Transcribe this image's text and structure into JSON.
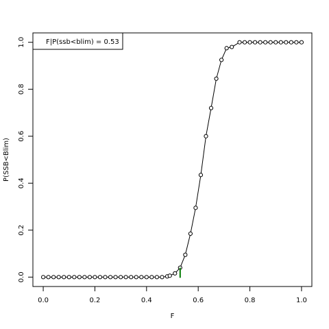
{
  "chart_data": {
    "type": "line",
    "xlabel": "F",
    "ylabel": "P(SSB<Blim)",
    "xlim": [
      -0.04,
      1.04
    ],
    "ylim": [
      -0.04,
      1.04
    ],
    "x_ticks": [
      "0.0",
      "0.2",
      "0.4",
      "0.6",
      "0.8",
      "1.0"
    ],
    "y_ticks": [
      "0.0",
      "0.2",
      "0.4",
      "0.6",
      "0.8",
      "1.0"
    ],
    "legend_text": "F|P(ssb<blim) =  0.53",
    "legend_position": "top-left",
    "marker": "open-circle",
    "line_color": "#000000",
    "highlight_color": "#007a00",
    "highlight": {
      "x": 0.53,
      "y_from": 0.0,
      "y_to": 0.04
    },
    "series": [
      {
        "x": [
          0.0,
          0.02,
          0.04,
          0.06,
          0.08,
          0.1,
          0.12,
          0.14,
          0.16,
          0.18,
          0.2,
          0.22,
          0.24,
          0.26,
          0.28,
          0.3,
          0.32,
          0.34,
          0.36,
          0.38,
          0.4,
          0.42,
          0.44,
          0.46,
          0.48,
          0.49,
          0.51,
          0.53,
          0.55,
          0.57,
          0.59,
          0.61,
          0.63,
          0.65,
          0.67,
          0.69,
          0.71,
          0.73,
          0.76,
          0.78,
          0.8,
          0.82,
          0.84,
          0.86,
          0.88,
          0.9,
          0.92,
          0.94,
          0.96,
          0.98,
          1.0
        ],
        "y": [
          0,
          0,
          0,
          0,
          0,
          0,
          0,
          0,
          0,
          0,
          0,
          0,
          0,
          0,
          0,
          0,
          0,
          0,
          0,
          0,
          0,
          0,
          0,
          0,
          0.003,
          0.006,
          0.016,
          0.04,
          0.095,
          0.185,
          0.295,
          0.435,
          0.6,
          0.72,
          0.845,
          0.925,
          0.975,
          0.98,
          1,
          1,
          1,
          1,
          1,
          1,
          1,
          1,
          1,
          1,
          1,
          1,
          1
        ]
      }
    ]
  }
}
